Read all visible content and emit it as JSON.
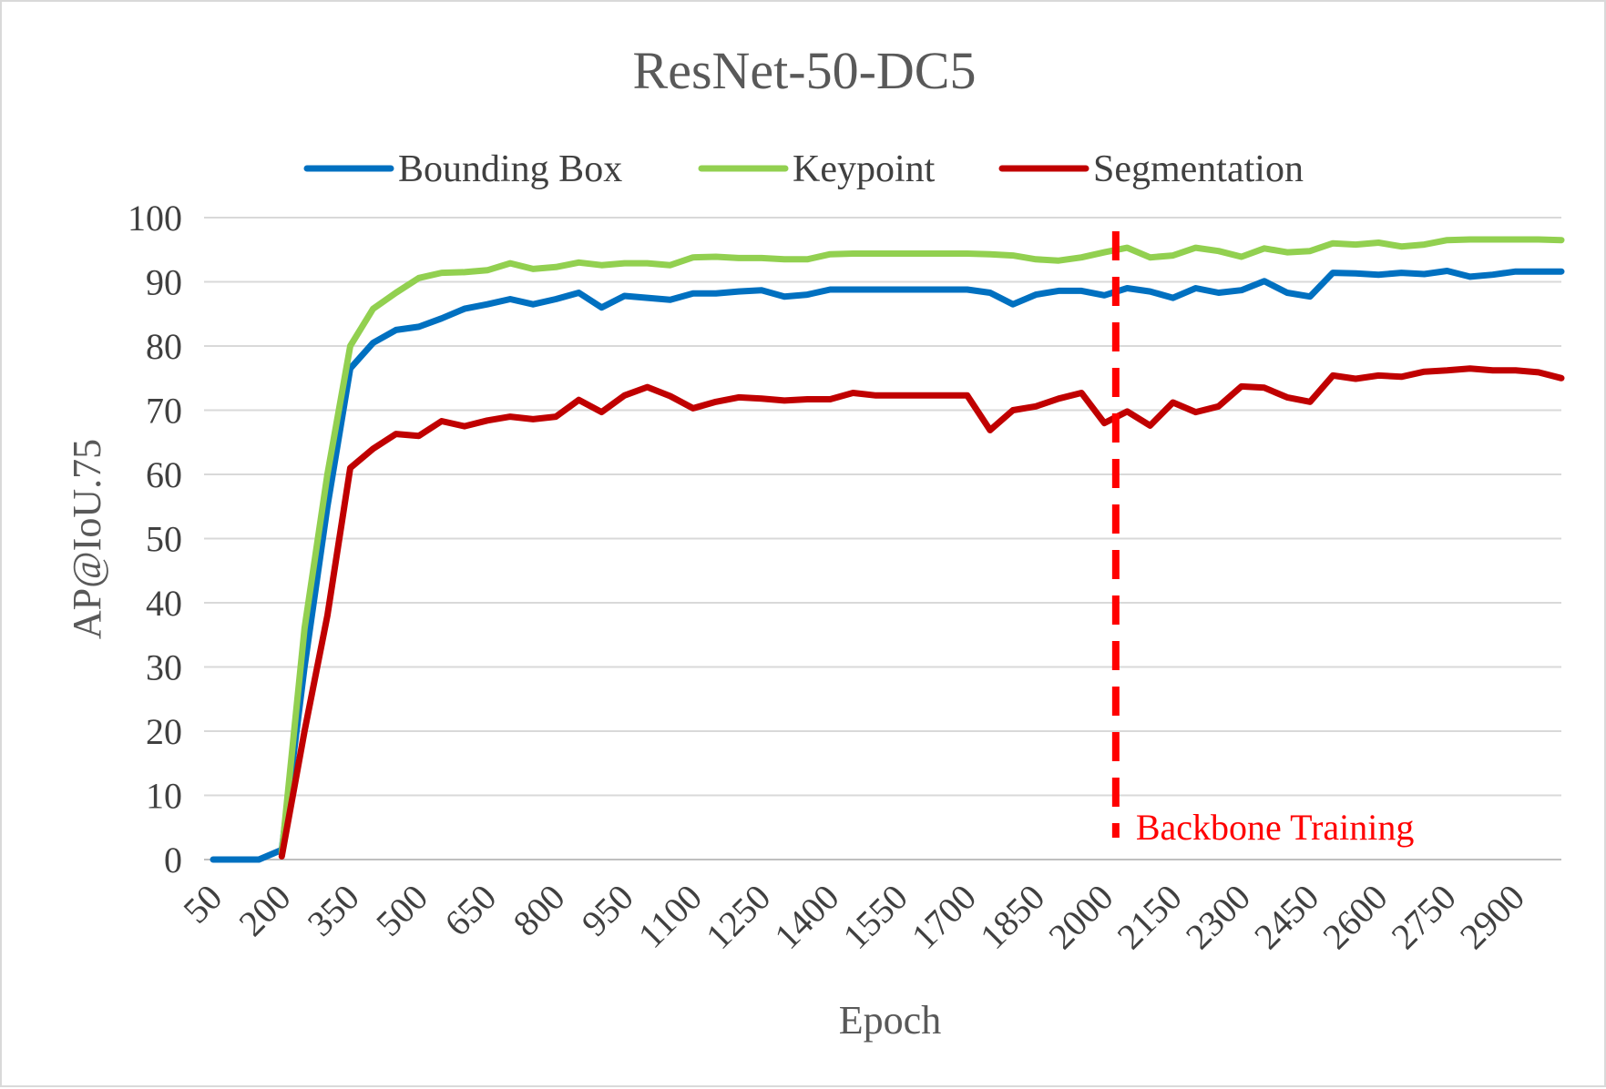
{
  "chart_data": {
    "type": "line",
    "title": "ResNet-50-DC5",
    "xlabel": "Epoch",
    "ylabel": "AP@IoU.75",
    "ylim": [
      0,
      100
    ],
    "yticks": [
      0,
      10,
      20,
      30,
      40,
      50,
      60,
      70,
      80,
      90,
      100
    ],
    "x": [
      50,
      100,
      150,
      200,
      250,
      300,
      350,
      400,
      450,
      500,
      550,
      600,
      650,
      700,
      750,
      800,
      850,
      900,
      950,
      1000,
      1050,
      1100,
      1150,
      1200,
      1250,
      1300,
      1350,
      1400,
      1450,
      1500,
      1550,
      1600,
      1650,
      1700,
      1750,
      1800,
      1850,
      1900,
      1950,
      2000,
      2050,
      2100,
      2150,
      2200,
      2250,
      2300,
      2350,
      2400,
      2450,
      2500,
      2550,
      2600,
      2650,
      2700,
      2750,
      2800,
      2850,
      2900,
      2950,
      3000
    ],
    "xtick_labels": [
      "50",
      "200",
      "350",
      "500",
      "650",
      "800",
      "950",
      "1100",
      "1250",
      "1400",
      "1550",
      "1700",
      "1850",
      "2000",
      "2150",
      "2300",
      "2450",
      "2600",
      "2750",
      "2900"
    ],
    "grid": true,
    "legend_position": "top",
    "series": [
      {
        "name": "Bounding Box",
        "color": "#0070c0",
        "values": [
          0,
          0,
          0,
          1.5,
          30,
          55,
          76.5,
          80.5,
          82.5,
          83,
          84.3,
          85.8,
          86.5,
          87.3,
          86.5,
          87.3,
          88.3,
          86,
          87.8,
          87.5,
          87.2,
          88.2,
          88.2,
          88.5,
          88.7,
          87.7,
          88,
          88.8,
          88.8,
          88.8,
          88.8,
          88.8,
          88.8,
          88.8,
          88.3,
          86.5,
          88,
          88.6,
          88.6,
          87.9,
          89,
          88.5,
          87.5,
          89,
          88.3,
          88.7,
          90.1,
          88.3,
          87.7,
          91.4,
          91.3,
          91.1,
          91.4,
          91.2,
          91.7,
          90.8,
          91.1,
          91.6,
          91.6,
          91.6
        ]
      },
      {
        "name": "Keypoint",
        "color": "#92d050",
        "values": [
          null,
          null,
          null,
          1,
          36,
          60,
          80,
          85.8,
          88.3,
          90.6,
          91.4,
          91.5,
          91.8,
          92.9,
          92,
          92.3,
          93,
          92.6,
          92.9,
          92.9,
          92.6,
          93.8,
          93.9,
          93.7,
          93.7,
          93.5,
          93.5,
          94.3,
          94.4,
          94.4,
          94.4,
          94.4,
          94.4,
          94.4,
          94.3,
          94.1,
          93.5,
          93.3,
          93.8,
          94.6,
          95.3,
          93.8,
          94.1,
          95.3,
          94.8,
          93.9,
          95.2,
          94.6,
          94.8,
          96,
          95.8,
          96.1,
          95.5,
          95.8,
          96.5,
          96.6,
          96.6,
          96.6,
          96.6,
          96.5
        ]
      },
      {
        "name": "Segmentation",
        "color": "#c00000",
        "values": [
          null,
          null,
          null,
          0.5,
          20,
          38,
          61,
          64,
          66.3,
          66,
          68.3,
          67.5,
          68.4,
          69,
          68.6,
          69,
          71.6,
          69.7,
          72.3,
          73.6,
          72.2,
          70.3,
          71.3,
          72,
          71.8,
          71.5,
          71.7,
          71.7,
          72.7,
          72.3,
          72.3,
          72.3,
          72.3,
          72.3,
          66.9,
          70,
          70.6,
          71.8,
          72.7,
          68,
          69.8,
          67.6,
          71.2,
          69.7,
          70.6,
          73.7,
          73.5,
          72,
          71.3,
          75.4,
          74.9,
          75.4,
          75.2,
          76,
          76.2,
          76.5,
          76.2,
          76.2,
          75.9,
          75
        ]
      }
    ],
    "annotation": {
      "x": 2025,
      "label": "Backbone Training",
      "color": "#ff0000"
    }
  }
}
